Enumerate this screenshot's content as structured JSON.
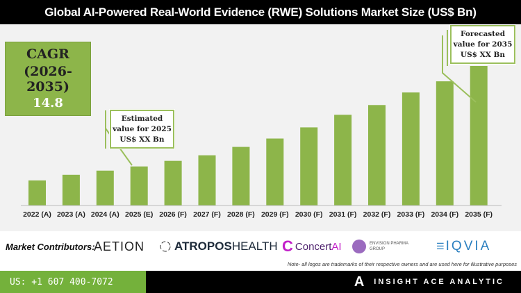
{
  "chart_data": {
    "type": "bar",
    "title": "Global AI-Powered Real-World Evidence (RWE) Solutions Market Size (US$ Bn)",
    "categories": [
      "2022 (A)",
      "2023 (A)",
      "2024 (A)",
      "2025 (E)",
      "2026 (F)",
      "2027 (F)",
      "2028 (F)",
      "2029 (F)",
      "2030 (F)",
      "2031 (F)",
      "2032 (F)",
      "2033 (F)",
      "2034 (F)",
      "2035 (F)"
    ],
    "values": [
      18,
      22,
      25,
      28,
      32,
      36,
      42,
      48,
      56,
      65,
      72,
      81,
      89,
      100
    ],
    "value_note": "relative bar heights, 2035 = 100 (no value axis shown)",
    "ylim": [
      0,
      100
    ],
    "grid": false,
    "bar_color": "#8db54a"
  },
  "cagr": {
    "label": "CAGR",
    "period": "(2026-2035)",
    "value": "14.8"
  },
  "callouts": {
    "estimated": [
      "Estimated",
      "value for 2025",
      "US$ XX Bn"
    ],
    "forecasted": [
      "Forecasted",
      "value for 2035",
      "US$ XX Bn"
    ]
  },
  "contributors": {
    "label": "Market Contributors:",
    "logos": [
      "AETION",
      "ATROPOS",
      "HEALTH",
      "Concert",
      "AI",
      "ENVISION PHARMA",
      "GROUP",
      "IQVIA"
    ]
  },
  "note": "Note- all logos are trademarks of their respective owners and are used here for illustrative purposes",
  "footer": {
    "phone": "US: +1 607 400-7072",
    "brand": "INSIGHT ACE ANALYTIC"
  },
  "colors": {
    "accent": "#8db54a",
    "footer_green": "#74b13b",
    "concert": "#c21fc9",
    "envision": "#9b6bbf",
    "iqvia": "#2a7fc0"
  }
}
